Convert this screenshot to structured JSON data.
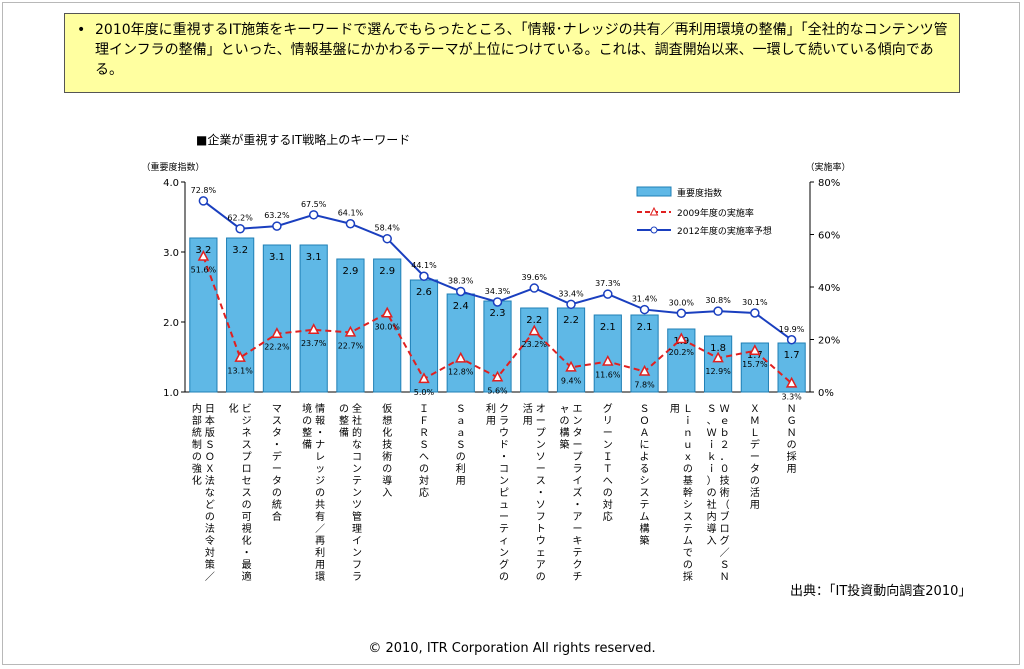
{
  "note": {
    "bullet": "•",
    "text": "2010年度に重視するIT施策をキーワードで選んでもらったところ、「情報･ナレッジの共有／再利用環境の整備」「全社的なコンテンツ管理インフラの整備」といった、情報基盤にかかわるテーマが上位につけている。これは、調査開始以来、一環して続いている傾向である。"
  },
  "source": "出典：「IT投資動向調査2010」",
  "copyright": "© 2010, ITR Corporation  All rights reserved.",
  "chart_data": {
    "type": "bar",
    "title": "■企業が重視するIT戦略上のキーワード",
    "ylabel_left": "（重要度指数）",
    "ylabel_right": "（実施率）",
    "ylim_left": [
      1.0,
      4.0
    ],
    "ylim_right": [
      0,
      80
    ],
    "yticks_left": [
      "1.0",
      "2.0",
      "3.0",
      "4.0"
    ],
    "yticks_right": [
      "0%",
      "20%",
      "40%",
      "60%",
      "80%"
    ],
    "legend_position": "top-right",
    "colors": {
      "bar": "#5fb8e6",
      "bar_border": "#1f7fb5",
      "s2009": "#e02020",
      "s2012": "#1a3fbf"
    },
    "categories": [
      "日本版ＳＯＸ法などの法令対策／内部統制の強化",
      "ビジネスプロセスの可視化・最適化",
      "マスタ・データの統合",
      "情報・ナレッジの共有／再利用環境の整備",
      "全社的なコンテンツ管理インフラの整備",
      "仮想化技術の導入",
      "ＩＦＲＳへの対応",
      "ＳａａＳの利用",
      "クラウド・コンピューティングの利用",
      "オープンソース・ソフトウェアの活用",
      "エンタープライズ・アーキテクチャの構築",
      "グリーンＩＴへの対応",
      "ＳＯＡによるシステム構築",
      "Ｌｉｎｕｘの基幹システムでの採用",
      "Ｗｅｂ２．０技術（ブログ／ＳＮＳ、Ｗｉｋｉ）の社内導入",
      "ＸＭＬデータの活用",
      "ＮＧＮの採用"
    ],
    "series": [
      {
        "name": "重要度指数",
        "kind": "bar",
        "axis": "left",
        "values": [
          3.2,
          3.2,
          3.1,
          3.1,
          2.9,
          2.9,
          2.6,
          2.4,
          2.3,
          2.2,
          2.2,
          2.1,
          2.1,
          1.9,
          1.8,
          1.7,
          1.7
        ],
        "labels": [
          "3.2",
          "3.2",
          "3.1",
          "3.1",
          "2.9",
          "2.9",
          "2.6",
          "2.4",
          "2.3",
          "2.2",
          "2.2",
          "2.1",
          "2.1",
          "1.9",
          "1.8",
          "1.7",
          "1.7"
        ]
      },
      {
        "name": "2009年度の実施率",
        "kind": "line",
        "axis": "right",
        "values": [
          51.6,
          13.1,
          22.2,
          23.7,
          22.7,
          30.0,
          5.0,
          12.8,
          5.6,
          23.2,
          9.4,
          11.6,
          7.8,
          20.2,
          12.9,
          15.7,
          3.3
        ],
        "labels": [
          "51.6%",
          "13.1%",
          "22.2%",
          "23.7%",
          "22.7%",
          "30.0%",
          "5.0%",
          "12.8%",
          "5.6%",
          "23.2%",
          "9.4%",
          "11.6%",
          "7.8%",
          "20.2%",
          "12.9%",
          "15.7%",
          "3.3%"
        ]
      },
      {
        "name": "2012年度の実施率予想",
        "kind": "line",
        "axis": "right",
        "values": [
          72.8,
          62.2,
          63.2,
          67.5,
          64.1,
          58.4,
          44.1,
          38.3,
          34.3,
          39.6,
          33.4,
          37.3,
          31.4,
          30.0,
          30.8,
          30.1,
          19.9
        ],
        "labels": [
          "72.8%",
          "62.2%",
          "63.2%",
          "67.5%",
          "64.1%",
          "58.4%",
          "44.1%",
          "38.3%",
          "34.3%",
          "39.6%",
          "33.4%",
          "37.3%",
          "31.4%",
          "30.0%",
          "30.8%",
          "30.1%",
          "19.9%"
        ]
      }
    ]
  }
}
